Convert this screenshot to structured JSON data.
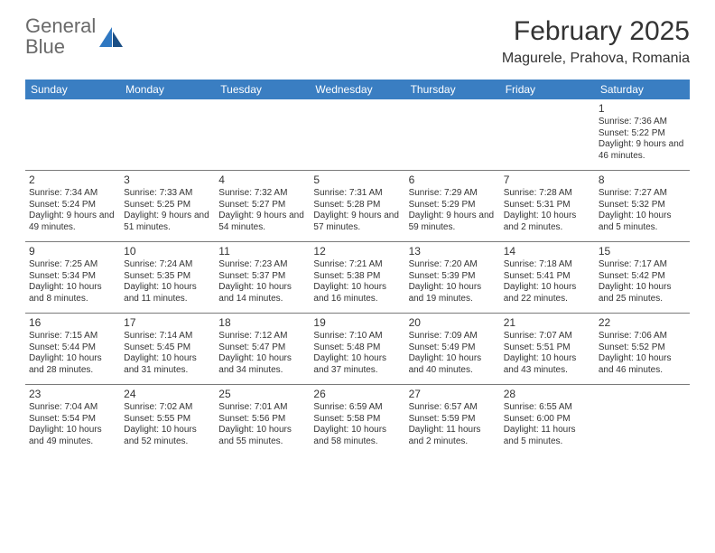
{
  "logo": {
    "textGray": "General",
    "textBlue": "Blue"
  },
  "title": "February 2025",
  "location": "Magurele, Prahova, Romania",
  "colors": {
    "headerBg": "#3a7ec2",
    "headerFg": "#ffffff",
    "rowBorder": "#7a7a7a",
    "textGray": "#6a6a6a",
    "textBlue": "#2f78c2"
  },
  "dayHeaders": [
    "Sunday",
    "Monday",
    "Tuesday",
    "Wednesday",
    "Thursday",
    "Friday",
    "Saturday"
  ],
  "weeks": [
    [
      null,
      null,
      null,
      null,
      null,
      null,
      {
        "n": "1",
        "sr": "7:36 AM",
        "ss": "5:22 PM",
        "dl": "9 hours and 46 minutes."
      }
    ],
    [
      {
        "n": "2",
        "sr": "7:34 AM",
        "ss": "5:24 PM",
        "dl": "9 hours and 49 minutes."
      },
      {
        "n": "3",
        "sr": "7:33 AM",
        "ss": "5:25 PM",
        "dl": "9 hours and 51 minutes."
      },
      {
        "n": "4",
        "sr": "7:32 AM",
        "ss": "5:27 PM",
        "dl": "9 hours and 54 minutes."
      },
      {
        "n": "5",
        "sr": "7:31 AM",
        "ss": "5:28 PM",
        "dl": "9 hours and 57 minutes."
      },
      {
        "n": "6",
        "sr": "7:29 AM",
        "ss": "5:29 PM",
        "dl": "9 hours and 59 minutes."
      },
      {
        "n": "7",
        "sr": "7:28 AM",
        "ss": "5:31 PM",
        "dl": "10 hours and 2 minutes."
      },
      {
        "n": "8",
        "sr": "7:27 AM",
        "ss": "5:32 PM",
        "dl": "10 hours and 5 minutes."
      }
    ],
    [
      {
        "n": "9",
        "sr": "7:25 AM",
        "ss": "5:34 PM",
        "dl": "10 hours and 8 minutes."
      },
      {
        "n": "10",
        "sr": "7:24 AM",
        "ss": "5:35 PM",
        "dl": "10 hours and 11 minutes."
      },
      {
        "n": "11",
        "sr": "7:23 AM",
        "ss": "5:37 PM",
        "dl": "10 hours and 14 minutes."
      },
      {
        "n": "12",
        "sr": "7:21 AM",
        "ss": "5:38 PM",
        "dl": "10 hours and 16 minutes."
      },
      {
        "n": "13",
        "sr": "7:20 AM",
        "ss": "5:39 PM",
        "dl": "10 hours and 19 minutes."
      },
      {
        "n": "14",
        "sr": "7:18 AM",
        "ss": "5:41 PM",
        "dl": "10 hours and 22 minutes."
      },
      {
        "n": "15",
        "sr": "7:17 AM",
        "ss": "5:42 PM",
        "dl": "10 hours and 25 minutes."
      }
    ],
    [
      {
        "n": "16",
        "sr": "7:15 AM",
        "ss": "5:44 PM",
        "dl": "10 hours and 28 minutes."
      },
      {
        "n": "17",
        "sr": "7:14 AM",
        "ss": "5:45 PM",
        "dl": "10 hours and 31 minutes."
      },
      {
        "n": "18",
        "sr": "7:12 AM",
        "ss": "5:47 PM",
        "dl": "10 hours and 34 minutes."
      },
      {
        "n": "19",
        "sr": "7:10 AM",
        "ss": "5:48 PM",
        "dl": "10 hours and 37 minutes."
      },
      {
        "n": "20",
        "sr": "7:09 AM",
        "ss": "5:49 PM",
        "dl": "10 hours and 40 minutes."
      },
      {
        "n": "21",
        "sr": "7:07 AM",
        "ss": "5:51 PM",
        "dl": "10 hours and 43 minutes."
      },
      {
        "n": "22",
        "sr": "7:06 AM",
        "ss": "5:52 PM",
        "dl": "10 hours and 46 minutes."
      }
    ],
    [
      {
        "n": "23",
        "sr": "7:04 AM",
        "ss": "5:54 PM",
        "dl": "10 hours and 49 minutes."
      },
      {
        "n": "24",
        "sr": "7:02 AM",
        "ss": "5:55 PM",
        "dl": "10 hours and 52 minutes."
      },
      {
        "n": "25",
        "sr": "7:01 AM",
        "ss": "5:56 PM",
        "dl": "10 hours and 55 minutes."
      },
      {
        "n": "26",
        "sr": "6:59 AM",
        "ss": "5:58 PM",
        "dl": "10 hours and 58 minutes."
      },
      {
        "n": "27",
        "sr": "6:57 AM",
        "ss": "5:59 PM",
        "dl": "11 hours and 2 minutes."
      },
      {
        "n": "28",
        "sr": "6:55 AM",
        "ss": "6:00 PM",
        "dl": "11 hours and 5 minutes."
      },
      null
    ]
  ],
  "labels": {
    "sunrise": "Sunrise:",
    "sunset": "Sunset:",
    "daylight": "Daylight:"
  }
}
